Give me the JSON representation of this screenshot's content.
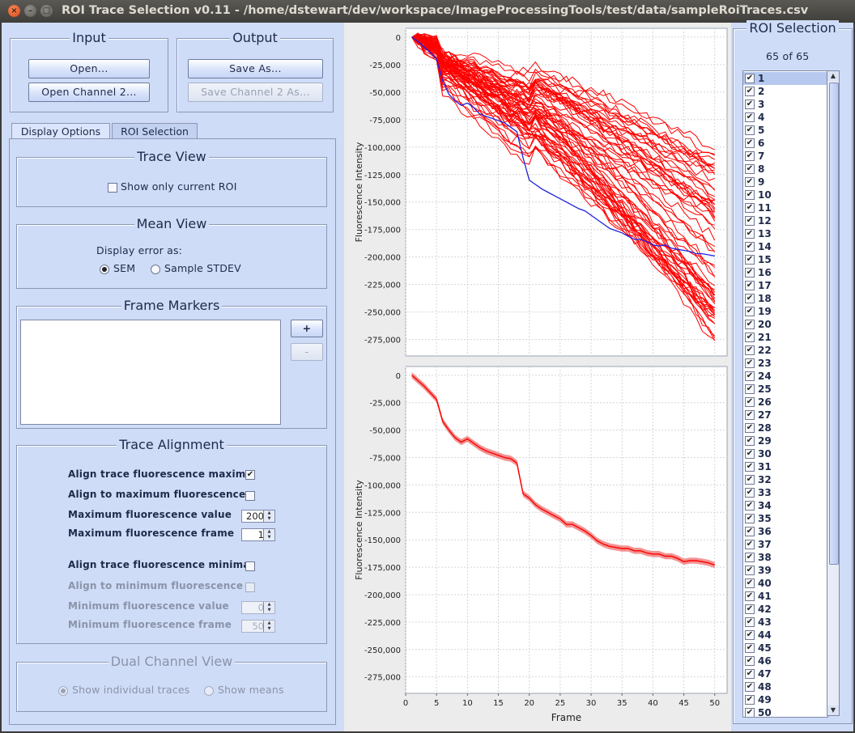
{
  "window": {
    "title": "ROI Trace Selection v0.11 - /home/dstewart/dev/workspace/ImageProcessingTools/test/data/sampleRoiTraces.csv"
  },
  "input": {
    "legend": "Input",
    "open_label": "Open...",
    "open_channel2_label": "Open Channel 2..."
  },
  "output": {
    "legend": "Output",
    "save_as_label": "Save As...",
    "save_channel2_label": "Save Channel 2 As..."
  },
  "tabs": [
    {
      "label": "Display Options",
      "active": true
    },
    {
      "label": "ROI Selection",
      "active": false
    }
  ],
  "trace_view": {
    "legend": "Trace View",
    "show_only_current_label": "Show only current ROI",
    "show_only_current": false
  },
  "mean_view": {
    "legend": "Mean View",
    "display_error_label": "Display error as:",
    "sem_label": "SEM",
    "stdev_label": "Sample STDEV",
    "selected": "SEM"
  },
  "frame_markers": {
    "legend": "Frame Markers",
    "add_label": "+",
    "remove_label": "-"
  },
  "trace_alignment": {
    "legend": "Trace Alignment",
    "align_maxima_label": "Align trace fluorescence maxima",
    "align_maxima": true,
    "align_to_max_label": "Align to maximum fluorescence",
    "align_to_max": false,
    "max_value_label": "Maximum fluorescence value",
    "max_value": "200",
    "max_frame_label": "Maximum fluorescence frame",
    "max_frame": "1",
    "align_minima_label": "Align trace fluorescence minima",
    "align_minima": false,
    "align_to_min_label": "Align to minimum fluorescence",
    "align_to_min": false,
    "min_value_label": "Minimum fluorescence value",
    "min_value": "0",
    "min_frame_label": "Minimum fluorescence frame",
    "min_frame": "50"
  },
  "dual_channel": {
    "legend": "Dual Channel View",
    "individual_label": "Show individual traces",
    "means_label": "Show means",
    "selected": "individual"
  },
  "roi_selection": {
    "title": "ROI Selection",
    "count_text": "65 of 65",
    "visible_items": [
      "1",
      "2",
      "3",
      "4",
      "5",
      "6",
      "7",
      "8",
      "9",
      "10",
      "11",
      "12",
      "13",
      "14",
      "15",
      "16",
      "17",
      "18",
      "19",
      "20",
      "21",
      "22",
      "23",
      "24",
      "25",
      "26",
      "27",
      "28",
      "29",
      "30",
      "31",
      "32",
      "33",
      "34",
      "35",
      "36",
      "37",
      "38",
      "39",
      "40",
      "41",
      "42",
      "43",
      "44",
      "45",
      "46",
      "47",
      "48",
      "49",
      "50"
    ],
    "selected_item": "1"
  },
  "colors": {
    "trace": "#ff0000",
    "current_trace": "#2020e0",
    "mean_band": "#f08080",
    "panel_bg": "#cfdcf7"
  },
  "chart_data": [
    {
      "type": "line",
      "title": "",
      "xlabel": "",
      "ylabel": "Fluorescence Intensity",
      "xlim": [
        0,
        52
      ],
      "ylim": [
        -290000,
        8000
      ],
      "y_ticks": [
        "0",
        "-25,000",
        "-50,000",
        "-75,000",
        "-100,000",
        "-125,000",
        "-150,000",
        "-175,000",
        "-200,000",
        "-225,000",
        "-250,000",
        "-275,000"
      ],
      "y_tick_values": [
        0,
        -25000,
        -50000,
        -75000,
        -100000,
        -125000,
        -150000,
        -175000,
        -200000,
        -225000,
        -250000,
        -275000
      ],
      "grid": true,
      "series_count": 65,
      "series": [
        {
          "x": [
            1,
            2,
            3,
            4,
            5,
            6,
            7,
            8,
            9,
            10,
            11,
            12,
            13,
            14,
            15,
            16,
            17,
            18,
            19,
            20,
            21,
            22,
            23,
            24,
            25,
            26,
            27,
            28,
            29,
            30,
            31,
            32,
            33,
            34,
            35,
            36,
            37,
            38,
            39,
            40,
            41,
            42,
            43,
            44,
            45,
            46,
            47,
            48,
            49,
            50
          ],
          "values": [
            0,
            -4000,
            -9000,
            -14000,
            -20000,
            -40000,
            -52000,
            -58000,
            -62000,
            -60000,
            -64000,
            -70000,
            -72000,
            -74000,
            -76000,
            -78000,
            -82000,
            -86000,
            -110000,
            -130000,
            -134000,
            -138000,
            -141000,
            -144000,
            -147000,
            -150000,
            -153000,
            -156000,
            -158000,
            -162000,
            -166000,
            -170000,
            -174000,
            -176000,
            -178000,
            -181000,
            -184000,
            -184000,
            -186000,
            -189000,
            -190000,
            -189000,
            -192000,
            -193000,
            -194000,
            -195000,
            -197000,
            -197000,
            -198000,
            -199000
          ],
          "color": "#2020e0"
        }
      ]
    },
    {
      "type": "line",
      "title": "",
      "xlabel": "Frame",
      "ylabel": "Fluorescence Intensity",
      "xlim": [
        0,
        52
      ],
      "ylim": [
        -290000,
        8000
      ],
      "x_ticks": [
        "0",
        "5",
        "10",
        "15",
        "20",
        "25",
        "30",
        "35",
        "40",
        "45",
        "50"
      ],
      "x_tick_values": [
        0,
        5,
        10,
        15,
        20,
        25,
        30,
        35,
        40,
        45,
        50
      ],
      "y_ticks": [
        "0",
        "-25,000",
        "-50,000",
        "-75,000",
        "-100,000",
        "-125,000",
        "-150,000",
        "-175,000",
        "-200,000",
        "-225,000",
        "-250,000",
        "-275,000"
      ],
      "y_tick_values": [
        0,
        -25000,
        -50000,
        -75000,
        -100000,
        -125000,
        -150000,
        -175000,
        -200000,
        -225000,
        -250000,
        -275000
      ],
      "grid": true,
      "series": [
        {
          "x": [
            1,
            2,
            3,
            4,
            5,
            6,
            7,
            8,
            9,
            10,
            11,
            12,
            13,
            14,
            15,
            16,
            17,
            18,
            19,
            20,
            21,
            22,
            23,
            24,
            25,
            26,
            27,
            28,
            29,
            30,
            31,
            32,
            33,
            34,
            35,
            36,
            37,
            38,
            39,
            40,
            41,
            42,
            43,
            44,
            45,
            46,
            47,
            48,
            49,
            50
          ],
          "values": [
            0,
            -5000,
            -10000,
            -16000,
            -22000,
            -42000,
            -50000,
            -57000,
            -61000,
            -58000,
            -62000,
            -66000,
            -69000,
            -71000,
            -73000,
            -75000,
            -76000,
            -80000,
            -108000,
            -112000,
            -118000,
            -122000,
            -125000,
            -128000,
            -131000,
            -136000,
            -136000,
            -139000,
            -142000,
            -146000,
            -151000,
            -154000,
            -156000,
            -157000,
            -158000,
            -158000,
            -160000,
            -160000,
            -162000,
            -163000,
            -163000,
            -165000,
            -165000,
            -167000,
            -170000,
            -169000,
            -169000,
            -170000,
            -171000,
            -173000
          ],
          "error": 2800,
          "color": "#ff0000"
        }
      ]
    }
  ]
}
